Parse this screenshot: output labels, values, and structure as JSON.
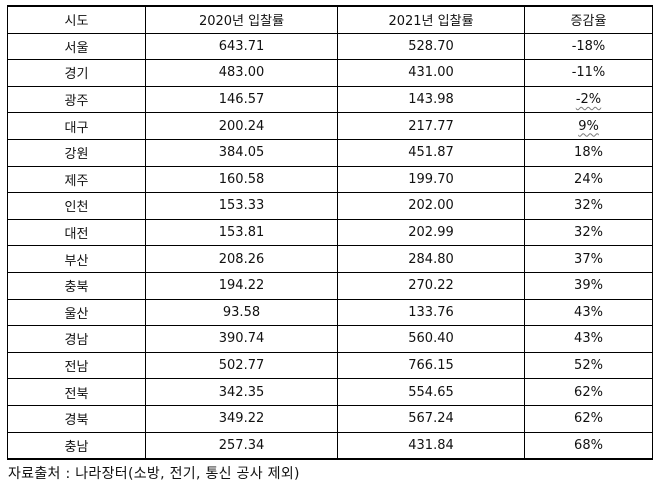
{
  "table": {
    "headers": [
      "시도",
      "2020년 입찰률",
      "2021년 입찰률",
      "증감율"
    ],
    "rows": [
      [
        "서울",
        "643.71",
        "528.70",
        "-18%"
      ],
      [
        "경기",
        "483.00",
        "431.00",
        "-11%"
      ],
      [
        "광주",
        "146.57",
        "143.98",
        "-2%"
      ],
      [
        "대구",
        "200.24",
        "217.77",
        "9%"
      ],
      [
        "강원",
        "384.05",
        "451.87",
        "18%"
      ],
      [
        "제주",
        "160.58",
        "199.70",
        "24%"
      ],
      [
        "인천",
        "153.33",
        "202.00",
        "32%"
      ],
      [
        "대전",
        "153.81",
        "202.99",
        "32%"
      ],
      [
        "부산",
        "208.26",
        "284.80",
        "37%"
      ],
      [
        "충북",
        "194.22",
        "270.22",
        "39%"
      ],
      [
        "울산",
        "93.58",
        "133.76",
        "43%"
      ],
      [
        "경남",
        "390.74",
        "560.40",
        "43%"
      ],
      [
        "전남",
        "502.77",
        "766.15",
        "52%"
      ],
      [
        "전북",
        "342.35",
        "554.65",
        "62%"
      ],
      [
        "경북",
        "349.22",
        "567.24",
        "62%"
      ],
      [
        "충남",
        "257.34",
        "431.84",
        "68%"
      ]
    ]
  },
  "source": "자료출처 : 나라장터(소방, 전기, 통신 공사 제외)"
}
